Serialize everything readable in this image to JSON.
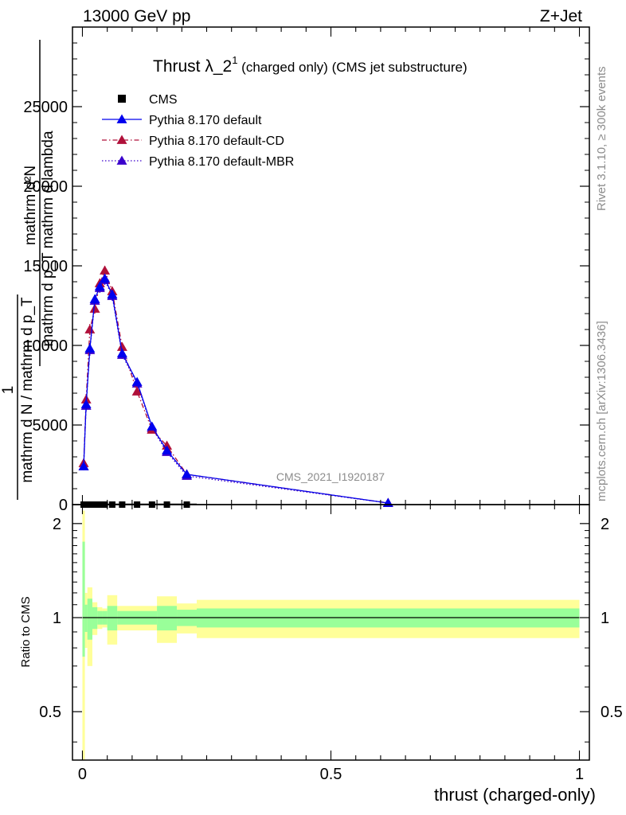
{
  "header": {
    "left": "13000 GeV pp",
    "right": "Z+Jet"
  },
  "side_labels": {
    "rivet": "Rivet 3.1.10, ≥ 300k events",
    "mcplots": "mcplots.cern.ch [arXiv:1306.3436]"
  },
  "watermark": "CMS_2021_I1920187",
  "colors": {
    "cms": "#000000",
    "default": "#0000ee",
    "cd": "#b0103a",
    "mbr": "#3a00cc",
    "band_inner": "#99ff99",
    "band_outer": "#ffff99"
  },
  "chart_data": [
    {
      "type": "line",
      "panel": "main",
      "title_main": "Thrust λ_2",
      "title_sup": "1",
      "title_rest": " (charged only) (CMS jet substructure)",
      "ylabel_frac_num": "mathrm d²N",
      "ylabel_frac_den": "mathrm d p_T mathrm d lambda",
      "ylabel_prefix_num": "1",
      "ylabel_prefix_den": "mathrm d N / mathrm d p_T",
      "xlim": [
        -0.02,
        1.02
      ],
      "ylim": [
        0,
        30000
      ],
      "yticks": [
        0,
        5000,
        10000,
        15000,
        20000,
        25000
      ],
      "ytick_labels": [
        "0",
        "5000",
        "10000",
        "15000",
        "20000",
        "25000"
      ],
      "legend_position": "top-left",
      "series": [
        {
          "name": "CMS",
          "marker": "square",
          "x": [
            0.0025,
            0.0075,
            0.015,
            0.025,
            0.035,
            0.045,
            0.06,
            0.08,
            0.11,
            0.14,
            0.17,
            0.21
          ],
          "y": [
            0,
            0,
            0,
            0,
            0,
            0,
            0,
            0,
            0,
            0,
            0,
            0
          ]
        },
        {
          "name": "Pythia 8.170 default",
          "marker": "triangle",
          "linestyle": "solid",
          "x": [
            0.0025,
            0.0075,
            0.015,
            0.025,
            0.035,
            0.045,
            0.06,
            0.08,
            0.11,
            0.14,
            0.17,
            0.21,
            0.615
          ],
          "y": [
            2400,
            6300,
            9800,
            12900,
            13700,
            14200,
            13200,
            9500,
            7700,
            4900,
            3400,
            1900,
            100
          ],
          "yerr": [
            250,
            350,
            350,
            300,
            300,
            300,
            300,
            250,
            200,
            180,
            150,
            100,
            30
          ]
        },
        {
          "name": "Pythia 8.170 default-CD",
          "marker": "triangle",
          "linestyle": "dashdot",
          "x": [
            0.0025,
            0.0075,
            0.015,
            0.025,
            0.035,
            0.045,
            0.06,
            0.08,
            0.11,
            0.14,
            0.17,
            0.21,
            0.615
          ],
          "y": [
            2600,
            6600,
            11000,
            12300,
            13900,
            14700,
            13400,
            9900,
            7100,
            4700,
            3700,
            1900,
            100
          ],
          "yerr": [
            250,
            350,
            350,
            300,
            300,
            300,
            300,
            250,
            200,
            180,
            150,
            100,
            30
          ]
        },
        {
          "name": "Pythia 8.170 default-MBR",
          "marker": "triangle",
          "linestyle": "dotted",
          "x": [
            0.0025,
            0.0075,
            0.015,
            0.025,
            0.035,
            0.045,
            0.06,
            0.08,
            0.11,
            0.14,
            0.17,
            0.21,
            0.615
          ],
          "y": [
            2400,
            6200,
            9700,
            12800,
            13600,
            14100,
            13100,
            9400,
            7600,
            4800,
            3300,
            1800,
            100
          ],
          "yerr": [
            250,
            350,
            350,
            300,
            300,
            300,
            300,
            250,
            200,
            180,
            150,
            100,
            30
          ]
        }
      ]
    },
    {
      "type": "area",
      "panel": "ratio",
      "ylabel": "Ratio to CMS",
      "xlabel": "thrust (charged-only)",
      "xlim": [
        -0.02,
        1.02
      ],
      "ylim": [
        0.35,
        2.3
      ],
      "yticks": [
        0.5,
        1,
        2
      ],
      "ytick_labels": [
        "0.5",
        "1",
        "2"
      ],
      "xticks": [
        0,
        0.5,
        1
      ],
      "xtick_labels": [
        "0",
        "0.5",
        "1"
      ],
      "bins": [
        {
          "x0": 0.0,
          "x1": 0.005,
          "inner": [
            0.75,
            1.75
          ],
          "outer": [
            0.3,
            2.2
          ]
        },
        {
          "x0": 0.005,
          "x1": 0.01,
          "inner": [
            0.9,
            1.1
          ],
          "outer": [
            0.8,
            1.2
          ]
        },
        {
          "x0": 0.01,
          "x1": 0.02,
          "inner": [
            0.85,
            1.15
          ],
          "outer": [
            0.7,
            1.25
          ]
        },
        {
          "x0": 0.02,
          "x1": 0.03,
          "inner": [
            0.92,
            1.08
          ],
          "outer": [
            0.88,
            1.12
          ]
        },
        {
          "x0": 0.03,
          "x1": 0.04,
          "inner": [
            0.95,
            1.05
          ],
          "outer": [
            0.92,
            1.08
          ]
        },
        {
          "x0": 0.04,
          "x1": 0.05,
          "inner": [
            0.95,
            1.05
          ],
          "outer": [
            0.93,
            1.07
          ]
        },
        {
          "x0": 0.05,
          "x1": 0.07,
          "inner": [
            0.91,
            1.09
          ],
          "outer": [
            0.82,
            1.18
          ]
        },
        {
          "x0": 0.07,
          "x1": 0.15,
          "inner": [
            0.95,
            1.05
          ],
          "outer": [
            0.91,
            1.09
          ]
        },
        {
          "x0": 0.15,
          "x1": 0.19,
          "inner": [
            0.91,
            1.09
          ],
          "outer": [
            0.83,
            1.17
          ]
        },
        {
          "x0": 0.19,
          "x1": 0.23,
          "inner": [
            0.94,
            1.06
          ],
          "outer": [
            0.89,
            1.11
          ]
        },
        {
          "x0": 0.23,
          "x1": 1.0,
          "inner": [
            0.93,
            1.07
          ],
          "outer": [
            0.86,
            1.14
          ]
        }
      ],
      "reference_line": 1
    }
  ]
}
